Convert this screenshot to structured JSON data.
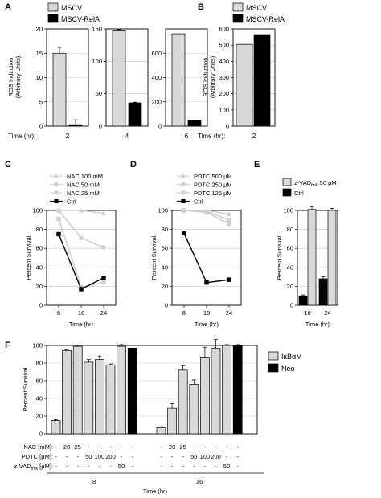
{
  "figure": {
    "panel_letters": [
      "A",
      "B",
      "C",
      "D",
      "E",
      "F"
    ]
  },
  "chart_data": [
    {
      "panel": "A",
      "type": "bar",
      "legend": [
        "MSCV",
        "MSCV-RelA"
      ],
      "ylabel_lines": [
        "ROS Induction",
        "(Arbitrary Units)"
      ],
      "xlabel": "Time (hr):",
      "subplots": [
        {
          "category": "2",
          "ylim": [
            0,
            20
          ],
          "yticks": [
            "0",
            "5",
            "10",
            "15",
            "20"
          ],
          "values": [
            15,
            0.3
          ],
          "errors": [
            1.2,
            1.0
          ]
        },
        {
          "category": "4",
          "ylim": [
            0,
            150
          ],
          "yticks": [
            "0",
            "50",
            "100",
            "150"
          ],
          "values": [
            148,
            36
          ],
          "errors": [
            1,
            1
          ]
        },
        {
          "category": "6",
          "ylim": [
            0,
            800
          ],
          "yticks": [
            "0",
            "200",
            "400",
            "600"
          ],
          "values": [
            760,
            50
          ],
          "errors": [
            0,
            0
          ]
        }
      ],
      "colors": [
        "#d9d9d9",
        "#000000"
      ],
      "grid": true
    },
    {
      "panel": "B",
      "type": "bar",
      "legend": [
        "MSCV",
        "MSCV-RelA"
      ],
      "ylabel_lines": [
        "ROS Induction",
        "(Arbitrary Units)"
      ],
      "xlabel": "Time (hr):",
      "category": "2",
      "ylim": [
        0,
        600
      ],
      "yticks": [
        "0",
        "100",
        "200",
        "300",
        "400",
        "500",
        "600"
      ],
      "values": [
        505,
        565
      ],
      "colors": [
        "#d9d9d9",
        "#000000"
      ],
      "grid": true
    },
    {
      "panel": "C",
      "type": "line",
      "x": [
        8,
        16,
        24
      ],
      "xticks": [
        "8",
        "16",
        "24"
      ],
      "ylim": [
        0,
        100
      ],
      "yticks": [
        "0",
        "20",
        "40",
        "60",
        "80",
        "100"
      ],
      "xlabel": "Time (hr)",
      "ylabel": "Percent Survival",
      "series": [
        {
          "name": "NAC 100 mM",
          "values": [
            100,
            100,
            97
          ],
          "color": "#d0d0d0",
          "marker": "triangle"
        },
        {
          "name": "NAC 50 mM",
          "values": [
            100,
            71,
            61
          ],
          "color": "#d0d0d0",
          "marker": "circle"
        },
        {
          "name": "NAC 25 mM",
          "values": [
            91,
            19,
            24
          ],
          "color": "#d0d0d0",
          "marker": "square"
        },
        {
          "name": "Ctrl",
          "values": [
            75,
            17,
            29
          ],
          "color": "#000000",
          "marker": "square"
        }
      ],
      "grid": true
    },
    {
      "panel": "D",
      "type": "line",
      "x": [
        8,
        16,
        24
      ],
      "xticks": [
        "8",
        "16",
        "24"
      ],
      "ylim": [
        0,
        100
      ],
      "yticks": [
        "0",
        "20",
        "40",
        "60",
        "80",
        "100"
      ],
      "xlabel": "Time (hr)",
      "ylabel": "Percent Survival",
      "series": [
        {
          "name": "PDTC 500 μM",
          "values": [
            100,
            100,
            96
          ],
          "color": "#d0d0d0",
          "marker": "triangle"
        },
        {
          "name": "PDTC 250 μM",
          "values": [
            100,
            99,
            90
          ],
          "color": "#d0d0d0",
          "marker": "circle"
        },
        {
          "name": "PDTC 125 μM",
          "values": [
            100,
            98,
            86
          ],
          "color": "#d0d0d0",
          "marker": "square"
        },
        {
          "name": "Ctrl",
          "values": [
            76,
            24,
            27
          ],
          "color": "#000000",
          "marker": "square"
        }
      ],
      "grid": true
    },
    {
      "panel": "E",
      "type": "bar",
      "categories": [
        "16",
        "24"
      ],
      "ylim": [
        0,
        100
      ],
      "yticks": [
        "0",
        "20",
        "40",
        "60",
        "80",
        "100"
      ],
      "xlabel": "Time (hr)",
      "ylabel": "Percent Survival",
      "series": [
        {
          "name_main": "z-VAD",
          "name_sub": "fmk",
          "name_tail": " 50 μM",
          "values": [
            101,
            100
          ],
          "errors": [
            3,
            2
          ],
          "color": "#d9d9d9"
        },
        {
          "name_main": "Ctrl",
          "name_sub": "",
          "name_tail": "",
          "values": [
            10,
            28
          ],
          "errors": [
            1,
            2
          ],
          "color": "#000000"
        }
      ],
      "grid": true
    },
    {
      "panel": "F",
      "type": "bar",
      "ylim": [
        0,
        100
      ],
      "yticks": [
        "0",
        "20",
        "40",
        "60",
        "80",
        "100"
      ],
      "ylabel": "Percent Survival",
      "legend": [
        "IκBαM",
        "Neo"
      ],
      "colors": [
        "#d9d9d9",
        "#000000"
      ],
      "groups": [
        {
          "time": "8",
          "values": [
            15,
            94,
            99,
            81,
            84,
            78,
            99,
            97
          ],
          "errors": [
            1,
            1,
            1,
            3,
            4,
            1,
            2,
            0
          ],
          "neo": [
            false,
            false,
            false,
            false,
            false,
            false,
            false,
            true
          ]
        },
        {
          "time": "16",
          "values": [
            7,
            29,
            72,
            56,
            86,
            97,
            100,
            100
          ],
          "errors": [
            1,
            5,
            5,
            5,
            12,
            10,
            1,
            1
          ],
          "neo": [
            false,
            false,
            false,
            false,
            false,
            false,
            false,
            true
          ]
        }
      ],
      "condition_rows": [
        {
          "label_main": "NAC [mM]:",
          "label_sub": "",
          "label_tail": "",
          "values": [
            "-",
            "20",
            "25",
            "-",
            "-",
            "-",
            "-",
            "-"
          ]
        },
        {
          "label_main": "PDTC [μM]:",
          "label_sub": "",
          "label_tail": "",
          "values": [
            "-",
            "-",
            "-",
            "50",
            "100",
            "200",
            "-",
            "-"
          ]
        },
        {
          "label_main": "z-VAD",
          "label_sub": "fmk",
          "label_tail": " [μM]:",
          "values": [
            "-",
            "-",
            "-",
            "-",
            "-",
            "-",
            "50",
            "-"
          ]
        }
      ],
      "xlabel": "Time (hr)",
      "grid": true
    }
  ]
}
